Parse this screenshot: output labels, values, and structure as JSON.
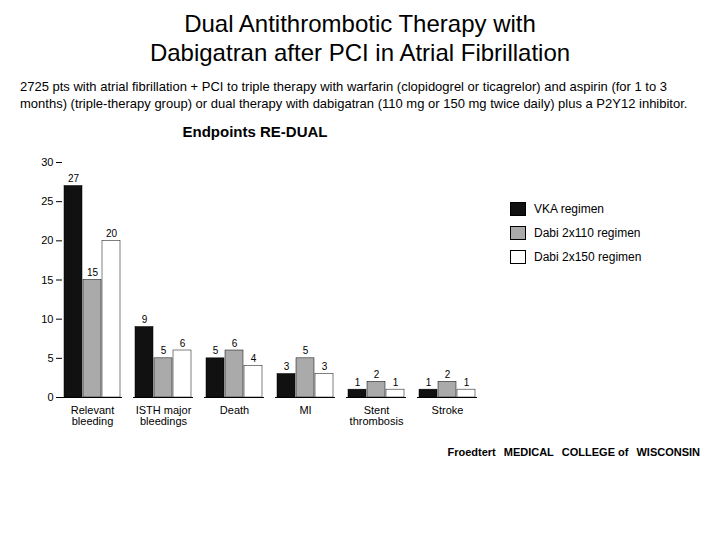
{
  "title": "Dual Antithrombotic Therapy with\nDabigatran after PCI in Atrial Fibrillation",
  "subtitle": "2725 pts with atrial fibrillation + PCI to triple therapy with warfarin (clopidogrel or ticagrelor) and aspirin (for 1 to 3 months) (triple-therapy group) or dual therapy with dabigatran (110 mg or 150 mg twice daily) plus a P2Y12 inhibitor.",
  "annotations": [
    "Froedtert",
    "MEDICAL",
    "COLLEGE of",
    "WISCONSIN"
  ],
  "chart_data": {
    "type": "bar",
    "title": "Endpoints RE-DUAL",
    "categories": [
      "Relevant\nbleeding",
      "ISTH major\nbleedings",
      "Death",
      "MI",
      "Stent\nthrombosis",
      "Stroke"
    ],
    "series": [
      {
        "name": "VKA regimen",
        "color": "#111111",
        "values": [
          27,
          9,
          5,
          3,
          1,
          1
        ]
      },
      {
        "name": "Dabi 2x110 regimen",
        "color": "#aaaaaa",
        "values": [
          15,
          5,
          6,
          5,
          2,
          2
        ]
      },
      {
        "name": "Dabi 2x150 regimen",
        "color": "#ffffff",
        "values": [
          20,
          6,
          4,
          3,
          1,
          1
        ]
      }
    ],
    "ylim": [
      0,
      30
    ],
    "yticks": [
      0,
      5,
      10,
      15,
      20,
      25,
      30
    ],
    "grid": false,
    "legend": "right",
    "data_labels": true
  }
}
